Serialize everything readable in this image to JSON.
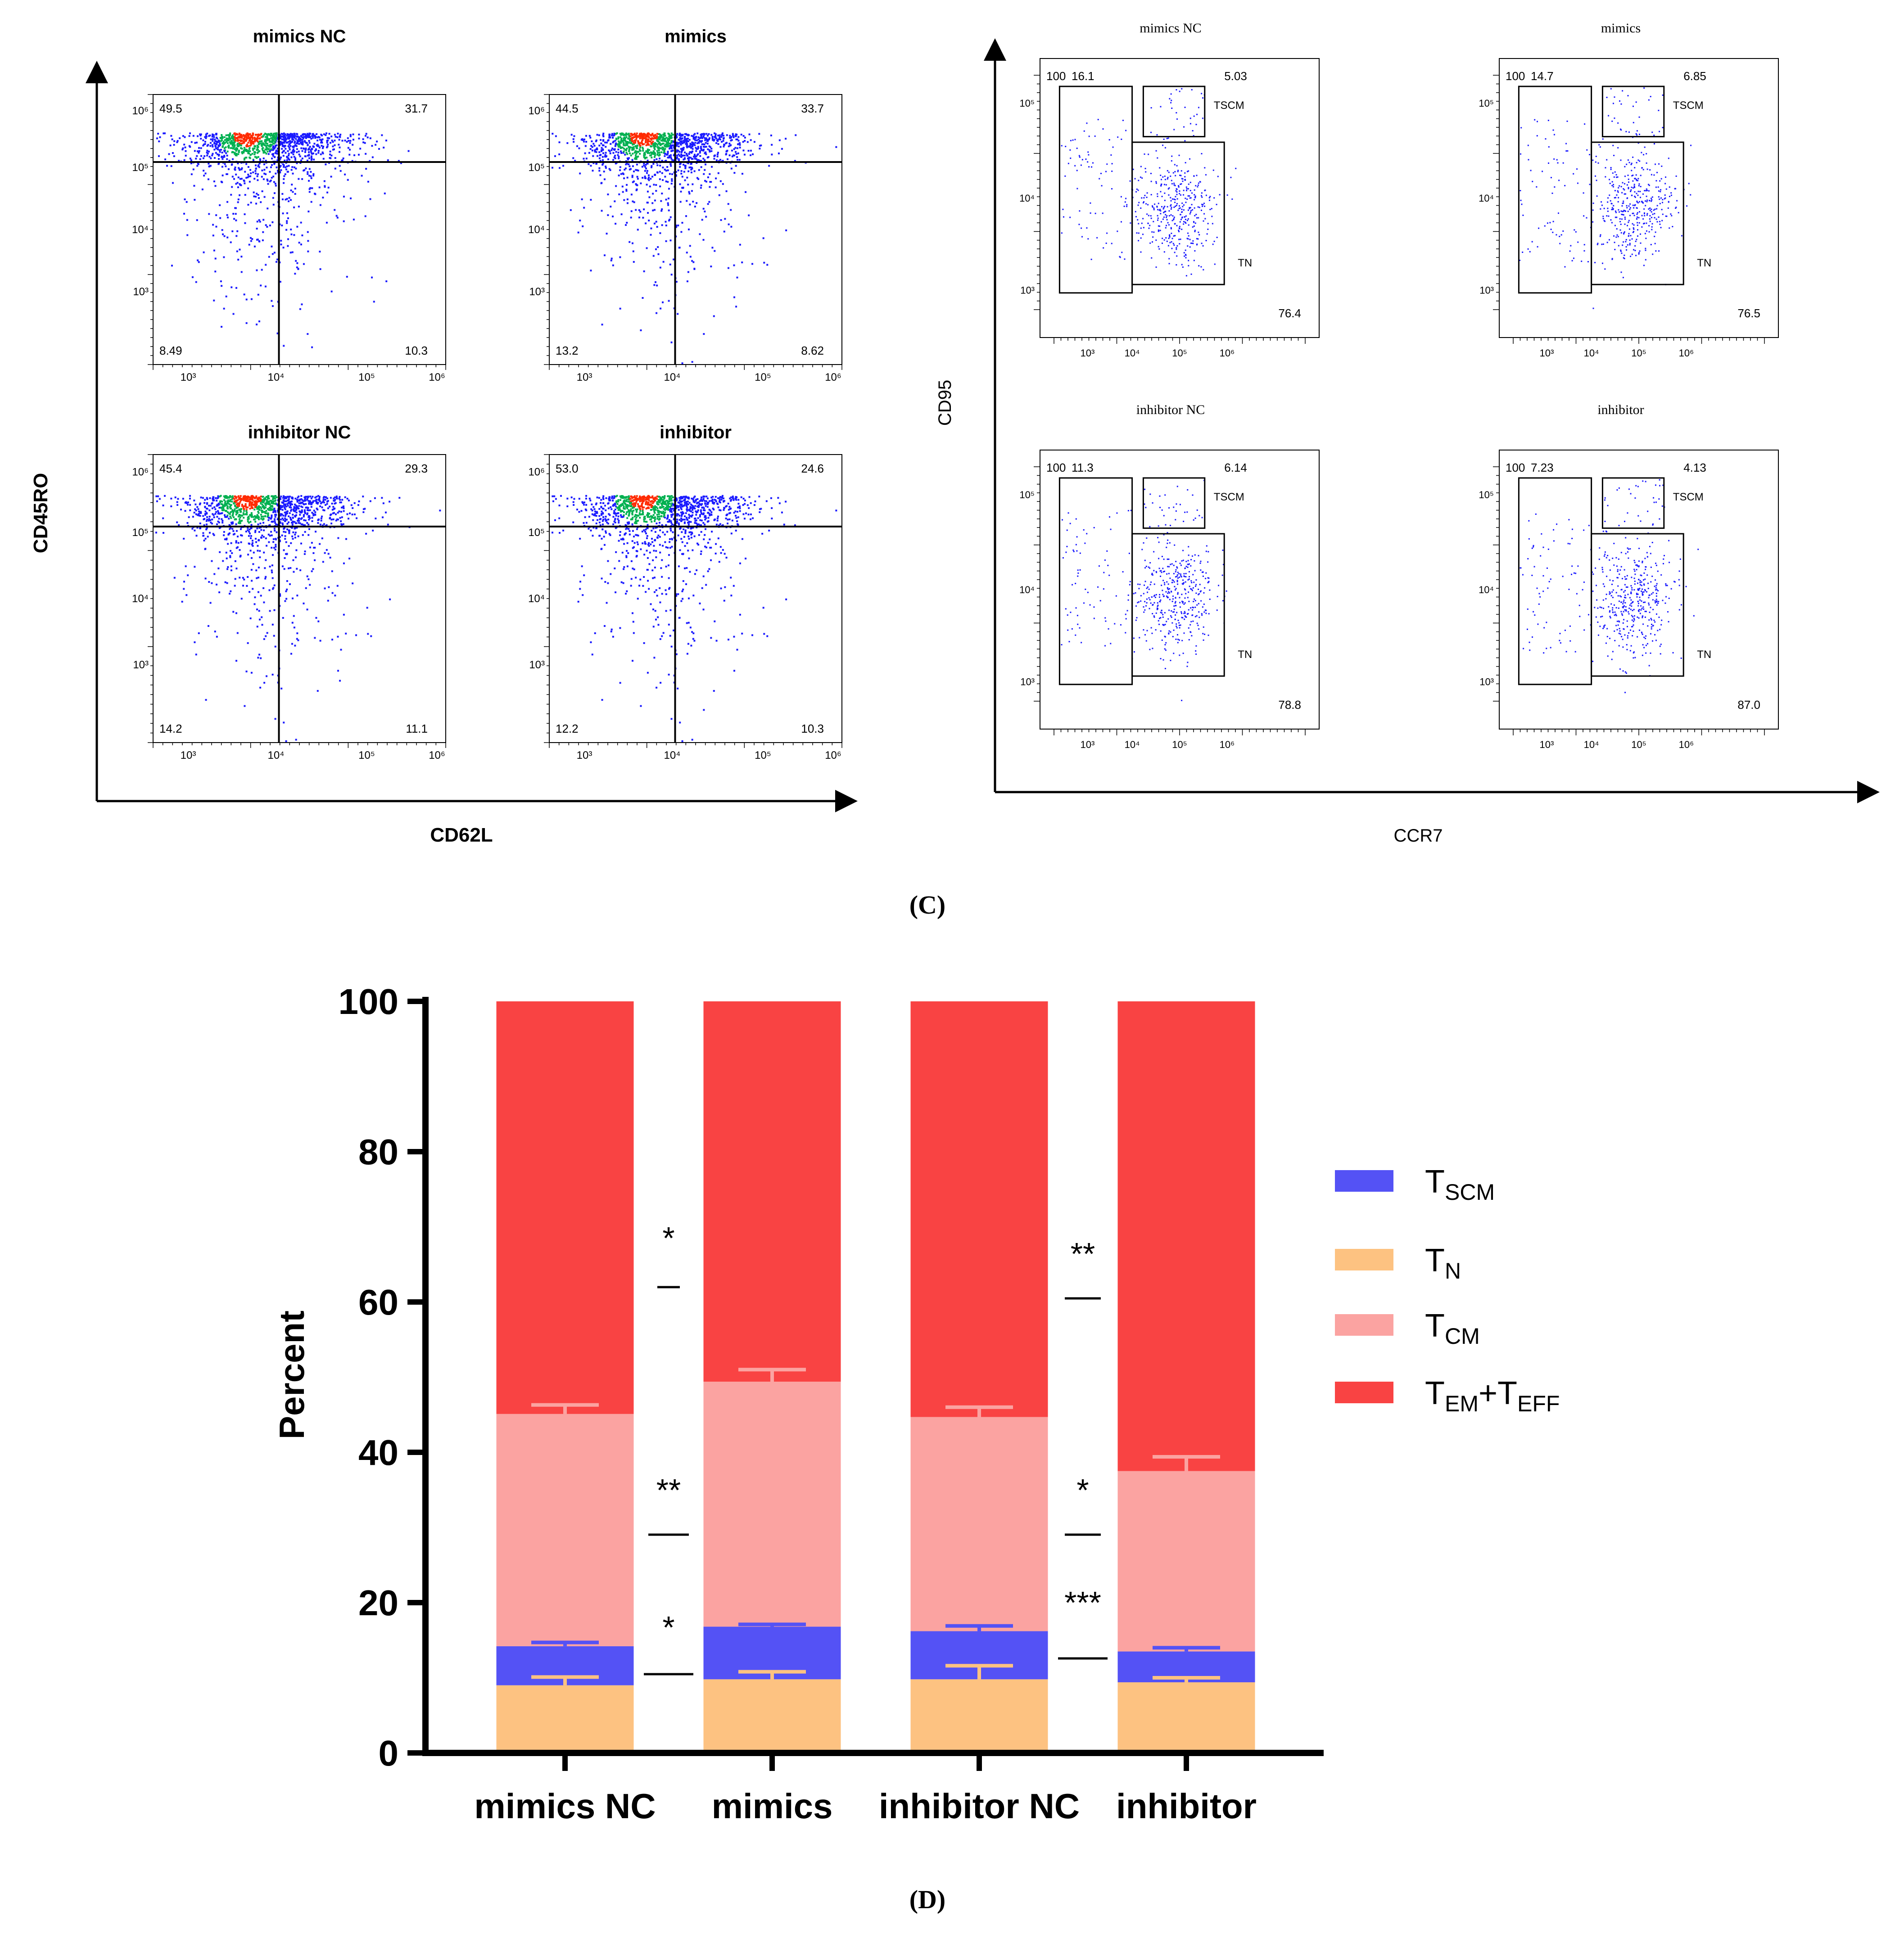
{
  "colors": {
    "tscm": "#5452F5",
    "tn": "#FDC281",
    "tcm": "#FBA3A1",
    "tem_teff": "#F94343",
    "dot_low": "#1a1aff",
    "dot_mid": "#00b050",
    "dot_high": "#ff2a00",
    "line": "#000000"
  },
  "panel_c": {
    "label": "(C)",
    "left": {
      "ylabel": "CD45RO",
      "xlabel": "CD62L",
      "plots": [
        {
          "title": "mimics NC",
          "q": [
            "49.5",
            "31.7",
            "8.49",
            "10.3"
          ]
        },
        {
          "title": "mimics",
          "q": [
            "44.5",
            "33.7",
            "13.2",
            "8.62"
          ]
        },
        {
          "title": "inhibitor NC",
          "q": [
            "45.4",
            "29.3",
            "14.2",
            "11.1"
          ]
        },
        {
          "title": "inhibitor",
          "q": [
            "53.0",
            "24.6",
            "12.2",
            "10.3"
          ]
        }
      ],
      "xticks": [
        "10³",
        "10⁴",
        "10⁵",
        "10⁶"
      ],
      "yticks": [
        "10⁶",
        "10⁵",
        "10⁴",
        "10³"
      ]
    },
    "right": {
      "ylabel": "CD95",
      "xlabel": "CCR7",
      "gate_tscm": "TSCM",
      "gate_tn": "TN",
      "plots": [
        {
          "title": "mimics NC",
          "a": "100",
          "b": "16.1",
          "tscm": "5.03",
          "tn": "76.4"
        },
        {
          "title": "mimics",
          "a": "100",
          "b": "14.7",
          "tscm": "6.85",
          "tn": "76.5"
        },
        {
          "title": "inhibitor NC",
          "a": "100",
          "b": "11.3",
          "tscm": "6.14",
          "tn": "78.8"
        },
        {
          "title": "inhibitor",
          "a": "100",
          "b": "7.23",
          "tscm": "4.13",
          "tn": "87.0"
        }
      ],
      "xticks": [
        "10³",
        "10⁴",
        "10⁵",
        "10⁶"
      ],
      "yticks": [
        "10⁵",
        "10⁴",
        "10³"
      ]
    }
  },
  "panel_d": {
    "label": "(D)",
    "significance": [
      {
        "between": "mimics NC vs mimics",
        "level": "T_EM+T_EFF",
        "stars": "*"
      },
      {
        "between": "mimics NC vs mimics",
        "level": "T_CM",
        "stars": "**"
      },
      {
        "between": "mimics NC vs mimics",
        "level": "T_SCM",
        "stars": "*"
      },
      {
        "between": "inhibitor NC vs inhibitor",
        "level": "T_EM+T_EFF",
        "stars": "**"
      },
      {
        "between": "inhibitor NC vs inhibitor",
        "level": "T_CM",
        "stars": "*"
      },
      {
        "between": "inhibitor NC vs inhibitor",
        "level": "T_SCM",
        "stars": "***"
      }
    ],
    "legend": [
      {
        "main": "T",
        "sub": "SCM",
        "key": "tscm"
      },
      {
        "main": "T",
        "sub": "N",
        "key": "tn"
      },
      {
        "main": "T",
        "sub": "CM",
        "key": "tcm"
      },
      {
        "main": "T",
        "sub": "EM",
        "mid": "+T",
        "sub2": "EFF",
        "key": "tem_teff"
      }
    ]
  },
  "chart_data": {
    "type": "bar",
    "stacked": true,
    "title": "",
    "xlabel": "",
    "ylabel": "Percent",
    "ylim": [
      0,
      100
    ],
    "yticks": [
      0,
      20,
      40,
      60,
      80,
      100
    ],
    "categories": [
      "mimics NC",
      "mimics",
      "inhibitor NC",
      "inhibitor"
    ],
    "series": [
      {
        "name": "T_N",
        "values": [
          9.0,
          9.8,
          9.8,
          9.4
        ]
      },
      {
        "name": "T_SCM",
        "values": [
          5.2,
          7.0,
          6.4,
          4.1
        ]
      },
      {
        "name": "T_CM",
        "values": [
          30.9,
          32.6,
          28.5,
          24.0
        ]
      },
      {
        "name": "T_EM+T_EFF",
        "values": [
          54.9,
          50.6,
          55.3,
          62.5
        ]
      }
    ],
    "error_tops": {
      "T_N": [
        10.1,
        10.8,
        11.6,
        10.0
      ],
      "T_SCM": [
        14.7,
        17.1,
        16.9,
        14.0
      ],
      "T_CM": [
        46.3,
        51.0,
        46.0,
        39.4
      ]
    },
    "legend_position": "right"
  }
}
